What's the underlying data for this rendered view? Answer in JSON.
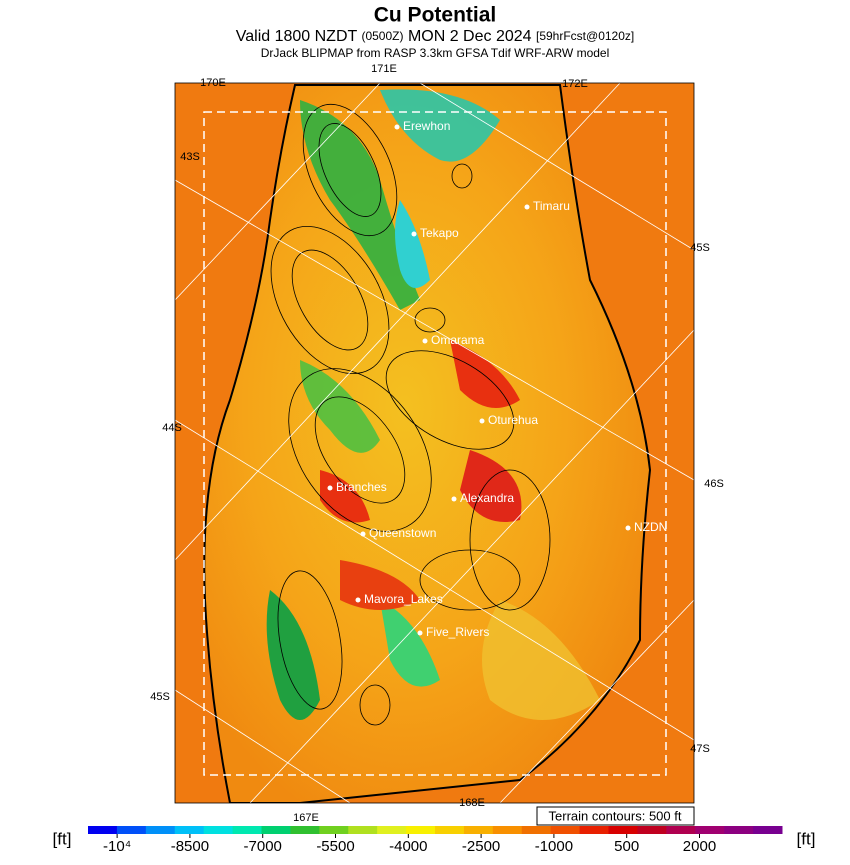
{
  "header": {
    "title": "Cu Potential",
    "valid": "Valid 1800 NZDT",
    "utc": "(0500Z)",
    "date": "MON 2 Dec 2024",
    "forecast": "[59hrFcst@0120z]",
    "model": "DrJack BLIPMAP from RASP 3.3km GFSA Tdif WRF-ARW model"
  },
  "map": {
    "lon_labels": [
      "170E",
      "171E",
      "172E",
      "167E",
      "168E"
    ],
    "lat_labels": [
      "43S",
      "45S",
      "44S",
      "46S",
      "45S",
      "47S"
    ],
    "places": [
      "Erewhon",
      "Timaru",
      "Tekapo",
      "Omarama",
      "Oturehua",
      "Branches",
      "Alexandra",
      "NZDN",
      "Queenstown",
      "Mavora_Lakes",
      "Five_Rivers"
    ],
    "contour_note": "Terrain contours: 500 ft"
  },
  "colorbar": {
    "unit": "[ft]",
    "lim": [
      -10600,
      3700
    ],
    "ticks": [
      {
        "value": -10000,
        "label": "-10⁴"
      },
      -8500,
      -7000,
      -5500,
      -4000,
      -2500,
      -1000,
      500,
      2000
    ]
  }
}
